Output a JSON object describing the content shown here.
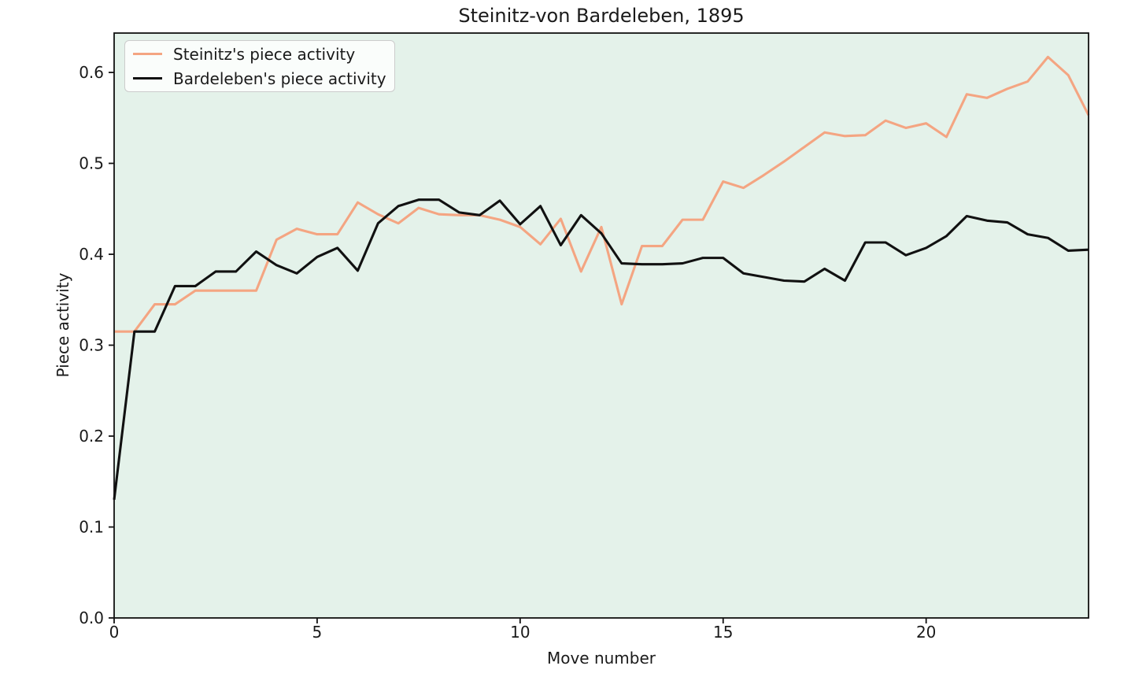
{
  "figure": {
    "background": "#ffffff",
    "plot_background": "#e4f2ea",
    "text_color": "#1a1a1a",
    "spine_color": "#111111"
  },
  "chart_data": {
    "type": "line",
    "title": "Steinitz-von Bardeleben, 1895",
    "xlabel": "Move number",
    "ylabel": "Piece activity",
    "xlim": [
      0,
      24
    ],
    "ylim": [
      0,
      0.6433
    ],
    "xtick_values": [
      0,
      5,
      10,
      15,
      20
    ],
    "xtick_labels": [
      "0",
      "5",
      "10",
      "15",
      "20"
    ],
    "ytick_values": [
      0.0,
      0.1,
      0.2,
      0.3,
      0.4,
      0.5,
      0.6
    ],
    "ytick_labels": [
      "0.0",
      "0.1",
      "0.2",
      "0.3",
      "0.4",
      "0.5",
      "0.6"
    ],
    "grid": false,
    "legend_position": "upper-left",
    "x": [
      0,
      0.5,
      1,
      1.5,
      2,
      2.5,
      3,
      3.5,
      4,
      4.5,
      5,
      5.5,
      6,
      6.5,
      7,
      7.5,
      8,
      8.5,
      9,
      9.5,
      10,
      10.5,
      11,
      11.5,
      12,
      12.5,
      13,
      13.5,
      14,
      14.5,
      15,
      15.5,
      16,
      16.5,
      17,
      17.5,
      18,
      18.5,
      19,
      19.5,
      20,
      20.5,
      21,
      21.5,
      22,
      22.5,
      23,
      23.5,
      24
    ],
    "series": [
      {
        "name": "Steinitz's piece activity",
        "color": "#f4a582",
        "values": [
          0.315,
          0.315,
          0.345,
          0.345,
          0.36,
          0.36,
          0.36,
          0.36,
          0.416,
          0.428,
          0.422,
          0.422,
          0.457,
          0.444,
          0.434,
          0.451,
          0.444,
          0.443,
          0.443,
          0.438,
          0.43,
          0.411,
          0.439,
          0.381,
          0.43,
          0.345,
          0.409,
          0.409,
          0.438,
          0.438,
          0.48,
          0.473,
          0.487,
          0.502,
          0.518,
          0.534,
          0.53,
          0.531,
          0.547,
          0.539,
          0.544,
          0.529,
          0.576,
          0.572,
          0.582,
          0.59,
          0.617,
          0.597,
          0.553
        ]
      },
      {
        "name": "Bardeleben's piece activity",
        "color": "#111111",
        "values": [
          0.13,
          0.315,
          0.315,
          0.365,
          0.365,
          0.381,
          0.381,
          0.403,
          0.388,
          0.379,
          0.397,
          0.407,
          0.382,
          0.434,
          0.453,
          0.46,
          0.46,
          0.446,
          0.443,
          0.459,
          0.433,
          0.453,
          0.41,
          0.443,
          0.423,
          0.39,
          0.389,
          0.389,
          0.39,
          0.396,
          0.396,
          0.379,
          0.375,
          0.371,
          0.37,
          0.384,
          0.371,
          0.413,
          0.413,
          0.399,
          0.407,
          0.42,
          0.442,
          0.437,
          0.435,
          0.422,
          0.418,
          0.404,
          0.405
        ]
      }
    ]
  }
}
